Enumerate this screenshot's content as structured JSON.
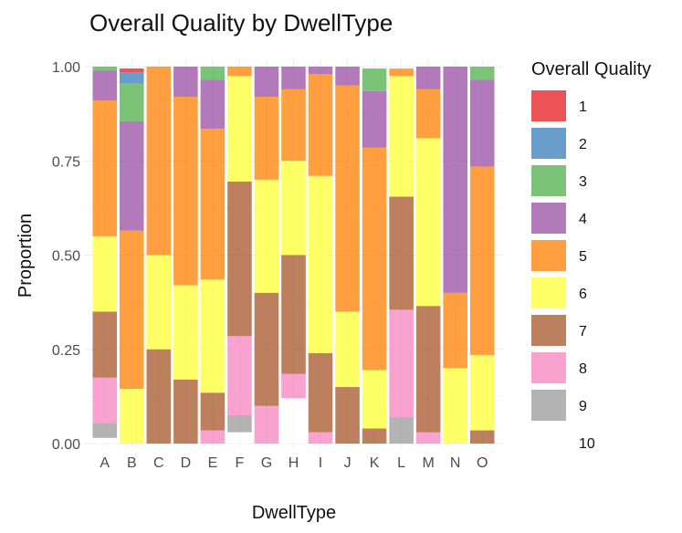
{
  "chart_data": {
    "type": "bar",
    "stacked": true,
    "title": "Overall Quality by DwellType",
    "xlabel": "DwellType",
    "ylabel": "Proportion",
    "ylim": [
      0,
      1
    ],
    "y_ticks": [
      "0.00",
      "0.25",
      "0.50",
      "0.75",
      "1.00"
    ],
    "categories": [
      "A",
      "B",
      "C",
      "D",
      "E",
      "F",
      "G",
      "H",
      "I",
      "J",
      "K",
      "L",
      "M",
      "N",
      "O"
    ],
    "legend": {
      "title": "Overall Quality",
      "placement": "right"
    },
    "grid": true,
    "series": [
      {
        "name": "1",
        "color": "#E41A1C",
        "values": [
          0,
          0.01,
          0,
          0,
          0,
          0,
          0,
          0,
          0,
          0,
          0,
          0,
          0,
          0,
          0
        ]
      },
      {
        "name": "2",
        "color": "#377EB8",
        "values": [
          0,
          0.03,
          0,
          0,
          0,
          0,
          0,
          0,
          0,
          0,
          0,
          0,
          0,
          0,
          0
        ]
      },
      {
        "name": "3",
        "color": "#4DAF4A",
        "values": [
          0.01,
          0.1,
          0,
          0,
          0.035,
          0,
          0,
          0,
          0,
          0,
          0.06,
          0,
          0,
          0,
          0.035
        ]
      },
      {
        "name": "4",
        "color": "#984EA3",
        "values": [
          0.08,
          0.29,
          0,
          0.08,
          0.13,
          0,
          0.08,
          0.06,
          0.02,
          0.05,
          0.15,
          0,
          0.06,
          0.6,
          0.23
        ]
      },
      {
        "name": "5",
        "color": "#FF7F00",
        "values": [
          0.36,
          0.42,
          0.5,
          0.5,
          0.4,
          0.025,
          0.22,
          0.19,
          0.27,
          0.6,
          0.59,
          0.02,
          0.13,
          0.2,
          0.5
        ]
      },
      {
        "name": "6",
        "color": "#FFFF33",
        "values": [
          0.2,
          0.145,
          0.25,
          0.25,
          0.3,
          0.28,
          0.3,
          0.25,
          0.47,
          0.2,
          0.155,
          0.32,
          0.445,
          0.2,
          0.2
        ]
      },
      {
        "name": "7",
        "color": "#A65628",
        "values": [
          0.175,
          0,
          0.25,
          0.17,
          0.1,
          0.41,
          0.3,
          0.315,
          0.21,
          0.15,
          0.04,
          0.3,
          0.335,
          0,
          0.035
        ]
      },
      {
        "name": "8",
        "color": "#F781BF",
        "values": [
          0.12,
          0,
          0,
          0,
          0.035,
          0.21,
          0.1,
          0.065,
          0.03,
          0,
          0,
          0.285,
          0.03,
          0,
          0
        ]
      },
      {
        "name": "9",
        "color": "#999999",
        "values": [
          0.04,
          0,
          0,
          0,
          0,
          0.045,
          0,
          0,
          0,
          0,
          0,
          0.07,
          0,
          0,
          0
        ]
      },
      {
        "name": "10",
        "color": "#FFFFFF",
        "values": [
          0.015,
          0,
          0,
          0,
          0,
          0.03,
          0,
          0.12,
          0,
          0,
          0,
          0,
          0,
          0,
          0
        ]
      }
    ]
  }
}
